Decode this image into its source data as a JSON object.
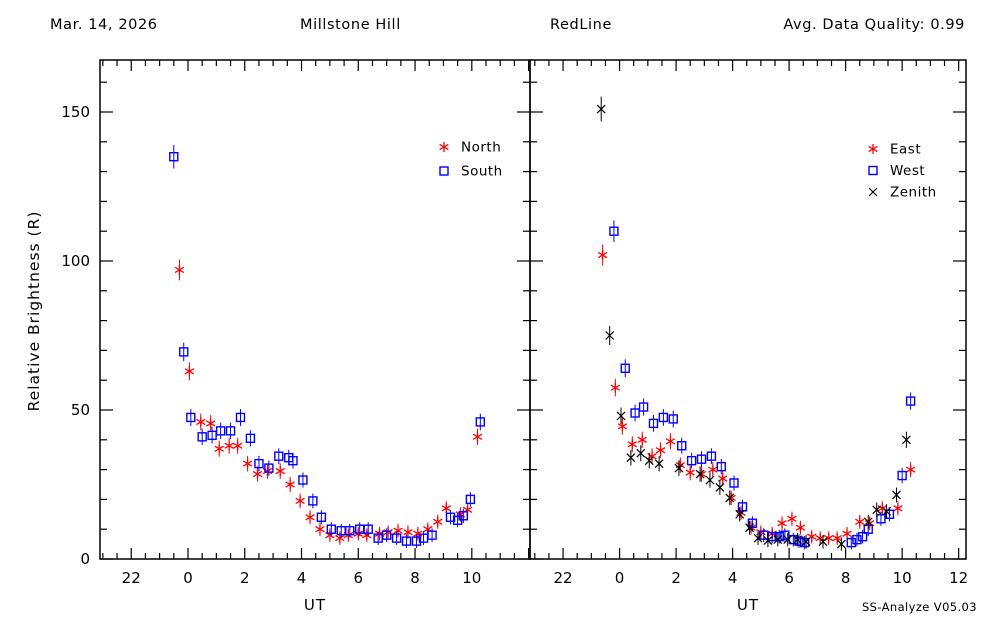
{
  "header": {
    "date": "Mar. 14, 2026",
    "site": "Millstone Hill",
    "filter": "RedLine",
    "quality": "Avg. Data Quality: 0.99"
  },
  "axes": {
    "ylabel": "Relative Brightness (R)",
    "xlabel": "UT"
  },
  "footer": {
    "version": "SS-Analyze V05.03"
  },
  "colors": {
    "red_series": "#ff0000",
    "blue_series": "#0000ff",
    "black_series": "#000000",
    "axis": "#000000",
    "background": "#ffffff"
  },
  "chart_data": [
    {
      "type": "scatter",
      "title": "Millstone Hill",
      "xlabel": "UT",
      "ylabel": "Relative Brightness (R)",
      "ylim": [
        0,
        167
      ],
      "yticks_major": [
        0,
        50,
        100,
        150
      ],
      "ytick_minor_step": 10,
      "x_range_hours": [
        20.9,
        36.05
      ],
      "x_minor_step": 0.5,
      "xticks": [
        [
          22,
          "22"
        ],
        [
          24,
          "0"
        ],
        [
          26,
          "2"
        ],
        [
          28,
          "4"
        ],
        [
          30,
          "6"
        ],
        [
          32,
          "8"
        ],
        [
          34,
          "10"
        ]
      ],
      "error_model": {
        "base": 2.2,
        "scale": 0.013
      },
      "legend_position": "upper-right",
      "series": [
        {
          "name": "North",
          "marker": "asterisk",
          "color": "#ff0000",
          "points": [
            [
              23.7,
              97
            ],
            [
              0.05,
              63
            ],
            [
              0.45,
              46
            ],
            [
              0.8,
              45.5
            ],
            [
              1.1,
              37
            ],
            [
              1.45,
              38
            ],
            [
              1.75,
              38
            ],
            [
              2.1,
              32
            ],
            [
              2.45,
              28.5
            ],
            [
              2.8,
              29.5
            ],
            [
              3.25,
              29.5
            ],
            [
              3.6,
              25
            ],
            [
              3.95,
              19.5
            ],
            [
              4.3,
              14
            ],
            [
              4.65,
              10
            ],
            [
              5,
              8
            ],
            [
              5.35,
              7
            ],
            [
              5.65,
              8
            ],
            [
              6,
              8.5
            ],
            [
              6.3,
              8
            ],
            [
              6.75,
              8.5
            ],
            [
              7.05,
              9
            ],
            [
              7.4,
              9.5
            ],
            [
              7.75,
              9
            ],
            [
              8.1,
              8.5
            ],
            [
              8.45,
              10
            ],
            [
              8.8,
              12.5
            ],
            [
              9.1,
              17
            ],
            [
              9.6,
              15
            ],
            [
              9.85,
              16.5
            ],
            [
              10.2,
              41
            ]
          ]
        },
        {
          "name": "South",
          "marker": "square",
          "color": "#0000ff",
          "points": [
            [
              23.5,
              135
            ],
            [
              23.85,
              69.5
            ],
            [
              0.1,
              47.5
            ],
            [
              0.5,
              41
            ],
            [
              0.85,
              41.5
            ],
            [
              1.15,
              43
            ],
            [
              1.5,
              43
            ],
            [
              1.85,
              47.5
            ],
            [
              2.2,
              40.5
            ],
            [
              2.5,
              32
            ],
            [
              2.85,
              30.5
            ],
            [
              3.2,
              34.5
            ],
            [
              3.55,
              34
            ],
            [
              3.7,
              33
            ],
            [
              4.05,
              26.5
            ],
            [
              4.4,
              19.5
            ],
            [
              4.7,
              14
            ],
            [
              5.05,
              10
            ],
            [
              5.4,
              9.5
            ],
            [
              5.7,
              9.5
            ],
            [
              6.05,
              10
            ],
            [
              6.35,
              10
            ],
            [
              6.7,
              7
            ],
            [
              7,
              8
            ],
            [
              7.35,
              7
            ],
            [
              7.7,
              6
            ],
            [
              8.05,
              6
            ],
            [
              8.3,
              7
            ],
            [
              8.6,
              8
            ],
            [
              9.25,
              14
            ],
            [
              9.5,
              13
            ],
            [
              9.7,
              14.5
            ],
            [
              9.95,
              20
            ],
            [
              10.3,
              46
            ]
          ]
        }
      ]
    },
    {
      "type": "scatter",
      "title": "RedLine",
      "xlabel": "UT",
      "ylabel": "Relative Brightness (R)",
      "ylim": [
        0,
        167
      ],
      "yticks_major": [
        0,
        50,
        100,
        150
      ],
      "ytick_minor_step": 10,
      "x_range_hours": [
        20.83,
        36.26
      ],
      "x_minor_step": 0.5,
      "xticks": [
        [
          22,
          "22"
        ],
        [
          24,
          "0"
        ],
        [
          26,
          "2"
        ],
        [
          28,
          "4"
        ],
        [
          30,
          "6"
        ],
        [
          32,
          "8"
        ],
        [
          34,
          "10"
        ],
        [
          36,
          "12"
        ]
      ],
      "error_model": {
        "base": 2.2,
        "scale": 0.013
      },
      "legend_position": "upper-right",
      "series": [
        {
          "name": "East",
          "marker": "asterisk",
          "color": "#ff0000",
          "points": [
            [
              23.4,
              102
            ],
            [
              23.85,
              57.5
            ],
            [
              0.1,
              44.5
            ],
            [
              0.45,
              38.5
            ],
            [
              0.8,
              40
            ],
            [
              1.15,
              34.5
            ],
            [
              1.45,
              36.5
            ],
            [
              1.8,
              39.5
            ],
            [
              2.15,
              31.5
            ],
            [
              2.5,
              29
            ],
            [
              2.9,
              28.5
            ],
            [
              3.3,
              30
            ],
            [
              3.65,
              27
            ],
            [
              3.95,
              20.5
            ],
            [
              4.3,
              15.5
            ],
            [
              4.65,
              10.5
            ],
            [
              5,
              9
            ],
            [
              5.4,
              8.5
            ],
            [
              5.75,
              12
            ],
            [
              6.1,
              13.5
            ],
            [
              6.4,
              10.5
            ],
            [
              6.8,
              7.5
            ],
            [
              7.1,
              7
            ],
            [
              7.4,
              7
            ],
            [
              7.7,
              7
            ],
            [
              8.05,
              8.5
            ],
            [
              8.5,
              12.5
            ],
            [
              8.85,
              12
            ],
            [
              9.3,
              17
            ],
            [
              9.85,
              17
            ],
            [
              10.3,
              30
            ]
          ]
        },
        {
          "name": "West",
          "marker": "square",
          "color": "#0000ff",
          "points": [
            [
              23.8,
              110
            ],
            [
              0.2,
              64
            ],
            [
              0.55,
              49
            ],
            [
              0.85,
              51
            ],
            [
              1.2,
              45.5
            ],
            [
              1.55,
              47.5
            ],
            [
              1.9,
              47
            ],
            [
              2.2,
              38
            ],
            [
              2.55,
              33
            ],
            [
              2.9,
              33.5
            ],
            [
              3.25,
              34.5
            ],
            [
              3.6,
              31
            ],
            [
              4.05,
              25.5
            ],
            [
              4.35,
              17.5
            ],
            [
              4.7,
              12
            ],
            [
              5.1,
              8
            ],
            [
              5.4,
              7.5
            ],
            [
              5.65,
              7.5
            ],
            [
              5.85,
              8
            ],
            [
              6.15,
              6.5
            ],
            [
              6.35,
              6
            ],
            [
              6.55,
              5.5
            ],
            [
              8.2,
              5.5
            ],
            [
              8.4,
              6.5
            ],
            [
              8.6,
              7.5
            ],
            [
              8.8,
              10
            ],
            [
              9.25,
              13.5
            ],
            [
              9.55,
              15
            ],
            [
              10,
              28
            ],
            [
              10.3,
              53
            ]
          ]
        },
        {
          "name": "Zenith",
          "marker": "x",
          "color": "#000000",
          "points": [
            [
              23.35,
              151
            ],
            [
              23.65,
              75
            ],
            [
              0.05,
              48
            ],
            [
              0.4,
              34
            ],
            [
              0.75,
              35.5
            ],
            [
              1.05,
              33
            ],
            [
              1.4,
              32
            ],
            [
              2.1,
              30.5
            ],
            [
              2.85,
              28.5
            ],
            [
              3.2,
              26.5
            ],
            [
              3.55,
              24
            ],
            [
              3.9,
              20.5
            ],
            [
              4.25,
              15
            ],
            [
              4.6,
              10.5
            ],
            [
              4.9,
              7
            ],
            [
              5.25,
              6.2
            ],
            [
              5.6,
              6.5
            ],
            [
              5.95,
              6.5
            ],
            [
              6.3,
              6.5
            ],
            [
              6.6,
              5.8
            ],
            [
              7.2,
              5.8
            ],
            [
              7.85,
              5
            ],
            [
              8.8,
              12.5
            ],
            [
              9.1,
              16.5
            ],
            [
              9.45,
              16
            ],
            [
              9.8,
              21.5
            ],
            [
              10.15,
              40
            ]
          ]
        }
      ]
    }
  ]
}
